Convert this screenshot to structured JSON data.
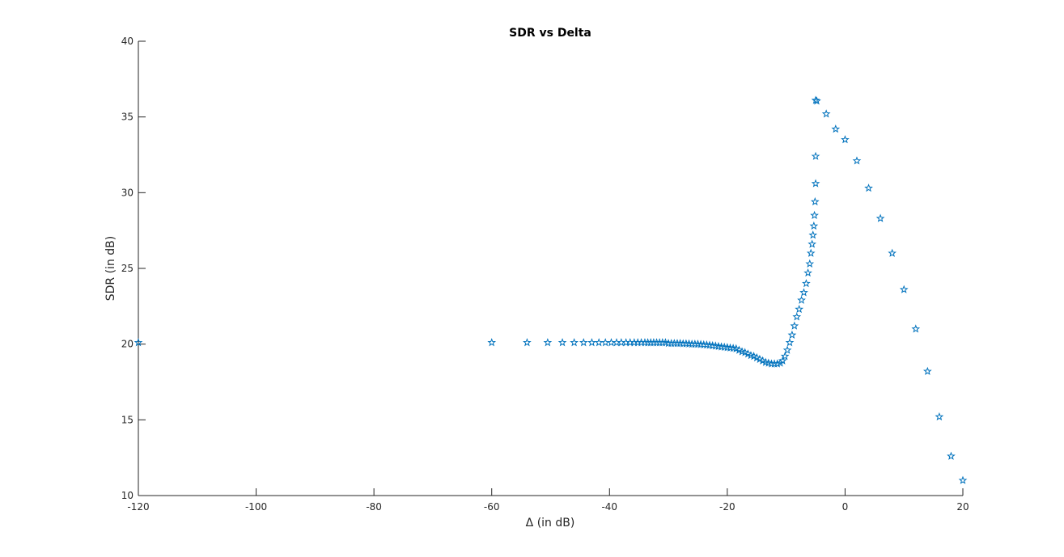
{
  "chart_data": {
    "type": "scatter",
    "title": "SDR vs Delta",
    "xlabel": "Δ (in dB)",
    "ylabel": "SDR (in dB)",
    "xlim": [
      -120,
      20
    ],
    "ylim": [
      10,
      40
    ],
    "xticks": [
      "-120",
      "-100",
      "-80",
      "-60",
      "-40",
      "-20",
      "0",
      "20"
    ],
    "yticks": [
      "10",
      "15",
      "20",
      "25",
      "30",
      "35",
      "40"
    ],
    "marker": "pentagram",
    "grid": false,
    "series": [
      {
        "color": "#0072BD",
        "points": [
          [
            -120,
            20.1
          ],
          [
            -60,
            20.1
          ],
          [
            -54,
            20.1
          ],
          [
            -50.5,
            20.1
          ],
          [
            -48,
            20.1
          ],
          [
            -46,
            20.1
          ],
          [
            -44.4,
            20.1
          ],
          [
            -43,
            20.1
          ],
          [
            -41.8,
            20.1
          ],
          [
            -40.7,
            20.1
          ],
          [
            -39.7,
            20.1
          ],
          [
            -38.8,
            20.1
          ],
          [
            -38,
            20.1
          ],
          [
            -37.2,
            20.1
          ],
          [
            -36.5,
            20.1
          ],
          [
            -35.8,
            20.1
          ],
          [
            -35.2,
            20.1
          ],
          [
            -34.6,
            20.1
          ],
          [
            -34,
            20.1
          ],
          [
            -33.5,
            20.1
          ],
          [
            -33,
            20.1
          ],
          [
            -32.5,
            20.1
          ],
          [
            -32,
            20.1
          ],
          [
            -31.5,
            20.1
          ],
          [
            -31,
            20.1
          ],
          [
            -30.5,
            20.1
          ],
          [
            -30,
            20.05
          ],
          [
            -29.5,
            20.05
          ],
          [
            -29,
            20.05
          ],
          [
            -28.5,
            20.05
          ],
          [
            -28,
            20.05
          ],
          [
            -27.5,
            20.03
          ],
          [
            -27,
            20.03
          ],
          [
            -26.5,
            20.02
          ],
          [
            -26,
            20.0
          ],
          [
            -25.5,
            20.0
          ],
          [
            -25,
            20.0
          ],
          [
            -24.5,
            19.98
          ],
          [
            -24,
            19.96
          ],
          [
            -23.5,
            19.95
          ],
          [
            -23,
            19.93
          ],
          [
            -22.5,
            19.9
          ],
          [
            -22,
            19.88
          ],
          [
            -21.5,
            19.85
          ],
          [
            -21,
            19.82
          ],
          [
            -20.5,
            19.8
          ],
          [
            -20,
            19.78
          ],
          [
            -19.5,
            19.75
          ],
          [
            -19,
            19.73
          ],
          [
            -18.5,
            19.7
          ],
          [
            -18,
            19.6
          ],
          [
            -17.5,
            19.5
          ],
          [
            -17,
            19.45
          ],
          [
            -16.5,
            19.35
          ],
          [
            -16,
            19.25
          ],
          [
            -15.5,
            19.2
          ],
          [
            -15,
            19.1
          ],
          [
            -14.5,
            19.0
          ],
          [
            -14,
            18.9
          ],
          [
            -13.5,
            18.8
          ],
          [
            -13,
            18.75
          ],
          [
            -12.5,
            18.7
          ],
          [
            -12,
            18.7
          ],
          [
            -11.5,
            18.7
          ],
          [
            -11,
            18.75
          ],
          [
            -10.6,
            18.9
          ],
          [
            -10.2,
            19.2
          ],
          [
            -9.8,
            19.6
          ],
          [
            -9.4,
            20.1
          ],
          [
            -9.0,
            20.6
          ],
          [
            -8.6,
            21.2
          ],
          [
            -8.2,
            21.8
          ],
          [
            -7.8,
            22.3
          ],
          [
            -7.4,
            22.9
          ],
          [
            -7.0,
            23.4
          ],
          [
            -6.6,
            24.0
          ],
          [
            -6.3,
            24.7
          ],
          [
            -6.0,
            25.3
          ],
          [
            -5.8,
            26.0
          ],
          [
            -5.6,
            26.6
          ],
          [
            -5.45,
            27.2
          ],
          [
            -5.3,
            27.8
          ],
          [
            -5.2,
            28.5
          ],
          [
            -5.1,
            29.4
          ],
          [
            -5.0,
            30.6
          ],
          [
            -5.0,
            32.4
          ],
          [
            -5.0,
            36.1
          ],
          [
            -4.8,
            36.05
          ],
          [
            -3.2,
            35.2
          ],
          [
            -1.6,
            34.2
          ],
          [
            0.0,
            33.5
          ],
          [
            2.0,
            32.1
          ],
          [
            4.0,
            30.3
          ],
          [
            6.0,
            28.3
          ],
          [
            8.0,
            26.0
          ],
          [
            10.0,
            23.6
          ],
          [
            12.0,
            21.0
          ],
          [
            14.0,
            18.2
          ],
          [
            16.0,
            15.2
          ],
          [
            18.0,
            12.6
          ],
          [
            20.0,
            11.0
          ]
        ]
      }
    ]
  }
}
